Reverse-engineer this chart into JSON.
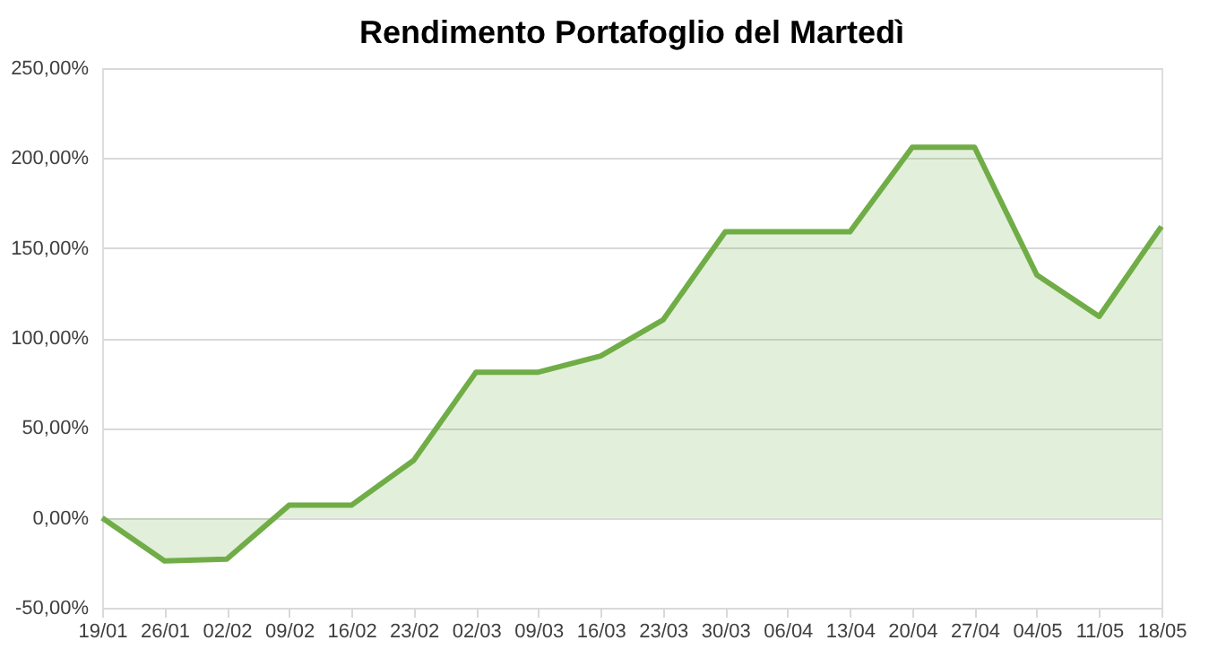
{
  "chart_data": {
    "type": "area",
    "title": "Rendimento Portafoglio del Martedì",
    "categories": [
      "19/01",
      "26/01",
      "02/02",
      "09/02",
      "16/02",
      "23/02",
      "02/03",
      "09/03",
      "16/03",
      "23/03",
      "30/03",
      "06/04",
      "13/04",
      "20/04",
      "27/04",
      "04/05",
      "11/05",
      "18/05"
    ],
    "series": [
      {
        "color": "#70ad47",
        "values": [
          0,
          -24,
          -23,
          7,
          7,
          32,
          81,
          81,
          90,
          110,
          159,
          159,
          159,
          206,
          206,
          135,
          112,
          162
        ]
      }
    ],
    "ylim": [
      -50,
      250
    ],
    "yticks": [
      {
        "value": -50,
        "label": "-50,00%"
      },
      {
        "value": 0,
        "label": "0,00%"
      },
      {
        "value": 50,
        "label": "50,00%"
      },
      {
        "value": 100,
        "label": "100,00%"
      },
      {
        "value": 150,
        "label": "150,00%"
      },
      {
        "value": 200,
        "label": "200,00%"
      },
      {
        "value": 250,
        "label": "250,00%"
      }
    ],
    "grid": "y",
    "marker": "none",
    "line_style": "solid"
  }
}
